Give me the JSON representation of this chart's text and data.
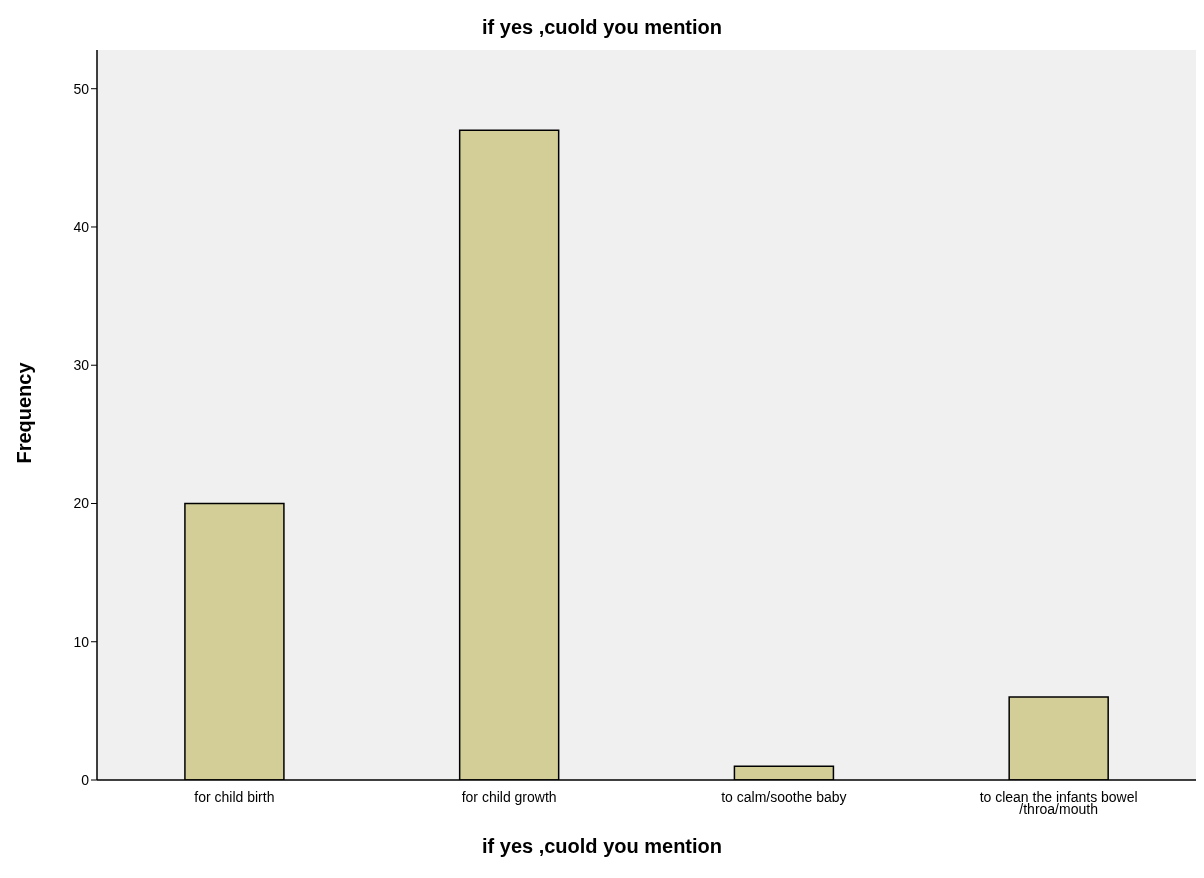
{
  "chart_data": {
    "type": "bar",
    "title": "if yes ,cuold you mention",
    "xlabel": "if yes ,cuold you mention",
    "ylabel": "Frequency",
    "categories": [
      "for child birth",
      "for child growth",
      "to calm/soothe baby",
      "to clean the infants bowel /throa/mouth"
    ],
    "values": [
      20,
      47,
      1,
      6
    ],
    "color": "#d3ce97",
    "ylim": [
      0,
      52.8
    ],
    "yticks": [
      0,
      10,
      20,
      30,
      40,
      50
    ],
    "grid": false
  }
}
